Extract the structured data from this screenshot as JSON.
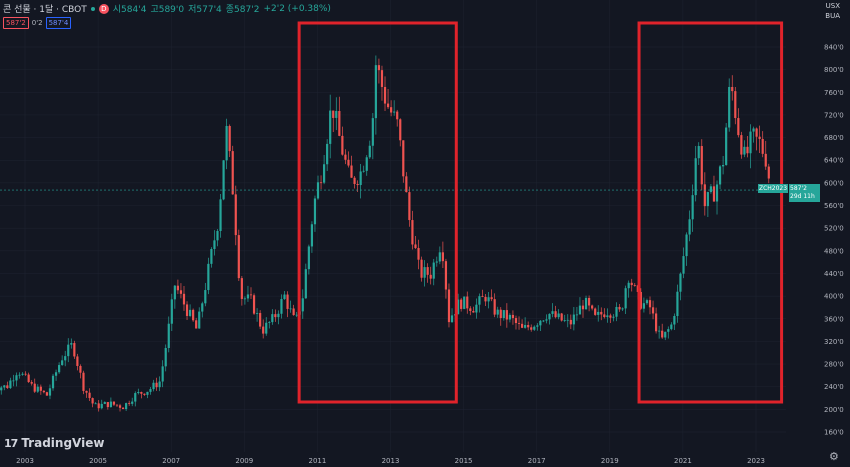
{
  "header": {
    "title": "콘 선물 · 1달 · CBOT",
    "o": "시584'4",
    "h": "고589'0",
    "l": "저577'4",
    "c": "종587'2",
    "chg": "+2'2 (+0.38%)",
    "badge": "D"
  },
  "pills": {
    "sell": "587'2",
    "sep": "0'2",
    "buy": "587'4"
  },
  "top_right": {
    "currency": "USX",
    "unit": "BUA"
  },
  "price_tag": {
    "symbol": "ZCH2023",
    "price": "587'2",
    "countdown": "29d 11h"
  },
  "brand": "TradingView",
  "colors": {
    "up": "#26a69a",
    "down": "#ef5350",
    "highlight": "#e0232b",
    "bg": "#131722",
    "grid": "#1f2431"
  },
  "chart_data": {
    "type": "candlestick",
    "title": "콘 선물 · 1달 · CBOT",
    "x_ticks": [
      "2003",
      "2005",
      "2007",
      "2009",
      "2011",
      "2013",
      "2015",
      "2017",
      "2019",
      "2021",
      "2023"
    ],
    "y_ticks": [
      "160'0",
      "200'0",
      "240'0",
      "280'0",
      "320'0",
      "360'0",
      "400'0",
      "440'0",
      "480'0",
      "520'0",
      "560'0",
      "600'0",
      "640'0",
      "680'0",
      "720'0",
      "760'0",
      "800'0",
      "840'0"
    ],
    "y_range": [
      120,
      880
    ],
    "x_range": [
      2002.3,
      2023.9
    ],
    "last_price": 587.25,
    "highlight_periods": [
      [
        2010.5,
        2014.8
      ],
      [
        2019.8,
        2023.7
      ]
    ],
    "series_monthly_close_approx": [
      {
        "t": 2002.5,
        "v": 240
      },
      {
        "t": 2002.8,
        "v": 270
      },
      {
        "t": 2003.2,
        "v": 240
      },
      {
        "t": 2003.6,
        "v": 225
      },
      {
        "t": 2004.0,
        "v": 290
      },
      {
        "t": 2004.3,
        "v": 315
      },
      {
        "t": 2004.6,
        "v": 240
      },
      {
        "t": 2004.9,
        "v": 205
      },
      {
        "t": 2005.3,
        "v": 210
      },
      {
        "t": 2005.7,
        "v": 205
      },
      {
        "t": 2006.0,
        "v": 225
      },
      {
        "t": 2006.4,
        "v": 235
      },
      {
        "t": 2006.7,
        "v": 250
      },
      {
        "t": 2006.9,
        "v": 330
      },
      {
        "t": 2007.1,
        "v": 420
      },
      {
        "t": 2007.4,
        "v": 380
      },
      {
        "t": 2007.7,
        "v": 340
      },
      {
        "t": 2008.0,
        "v": 440
      },
      {
        "t": 2008.3,
        "v": 540
      },
      {
        "t": 2008.5,
        "v": 700
      },
      {
        "t": 2008.7,
        "v": 580
      },
      {
        "t": 2008.9,
        "v": 400
      },
      {
        "t": 2009.2,
        "v": 390
      },
      {
        "t": 2009.5,
        "v": 340
      },
      {
        "t": 2009.8,
        "v": 360
      },
      {
        "t": 2010.1,
        "v": 400
      },
      {
        "t": 2010.4,
        "v": 350
      },
      {
        "t": 2010.6,
        "v": 400
      },
      {
        "t": 2010.9,
        "v": 560
      },
      {
        "t": 2011.1,
        "v": 620
      },
      {
        "t": 2011.4,
        "v": 740
      },
      {
        "t": 2011.6,
        "v": 680
      },
      {
        "t": 2011.9,
        "v": 600
      },
      {
        "t": 2012.2,
        "v": 620
      },
      {
        "t": 2012.5,
        "v": 700
      },
      {
        "t": 2012.6,
        "v": 810
      },
      {
        "t": 2012.9,
        "v": 740
      },
      {
        "t": 2013.2,
        "v": 700
      },
      {
        "t": 2013.5,
        "v": 540
      },
      {
        "t": 2013.8,
        "v": 440
      },
      {
        "t": 2014.1,
        "v": 440
      },
      {
        "t": 2014.4,
        "v": 500
      },
      {
        "t": 2014.6,
        "v": 360
      },
      {
        "t": 2014.9,
        "v": 390
      },
      {
        "t": 2015.3,
        "v": 380
      },
      {
        "t": 2015.6,
        "v": 400
      },
      {
        "t": 2015.9,
        "v": 370
      },
      {
        "t": 2016.3,
        "v": 360
      },
      {
        "t": 2016.6,
        "v": 340
      },
      {
        "t": 2016.9,
        "v": 350
      },
      {
        "t": 2017.3,
        "v": 370
      },
      {
        "t": 2017.6,
        "v": 360
      },
      {
        "t": 2017.9,
        "v": 350
      },
      {
        "t": 2018.3,
        "v": 390
      },
      {
        "t": 2018.6,
        "v": 360
      },
      {
        "t": 2018.9,
        "v": 375
      },
      {
        "t": 2019.3,
        "v": 370
      },
      {
        "t": 2019.5,
        "v": 440
      },
      {
        "t": 2019.8,
        "v": 390
      },
      {
        "t": 2020.1,
        "v": 380
      },
      {
        "t": 2020.4,
        "v": 320
      },
      {
        "t": 2020.7,
        "v": 350
      },
      {
        "t": 2020.9,
        "v": 420
      },
      {
        "t": 2021.2,
        "v": 550
      },
      {
        "t": 2021.4,
        "v": 680
      },
      {
        "t": 2021.6,
        "v": 560
      },
      {
        "t": 2021.9,
        "v": 590
      },
      {
        "t": 2022.1,
        "v": 640
      },
      {
        "t": 2022.3,
        "v": 780
      },
      {
        "t": 2022.5,
        "v": 700
      },
      {
        "t": 2022.7,
        "v": 640
      },
      {
        "t": 2022.9,
        "v": 680
      },
      {
        "t": 2023.1,
        "v": 670
      },
      {
        "t": 2023.3,
        "v": 640
      },
      {
        "t": 2023.4,
        "v": 587
      }
    ]
  }
}
